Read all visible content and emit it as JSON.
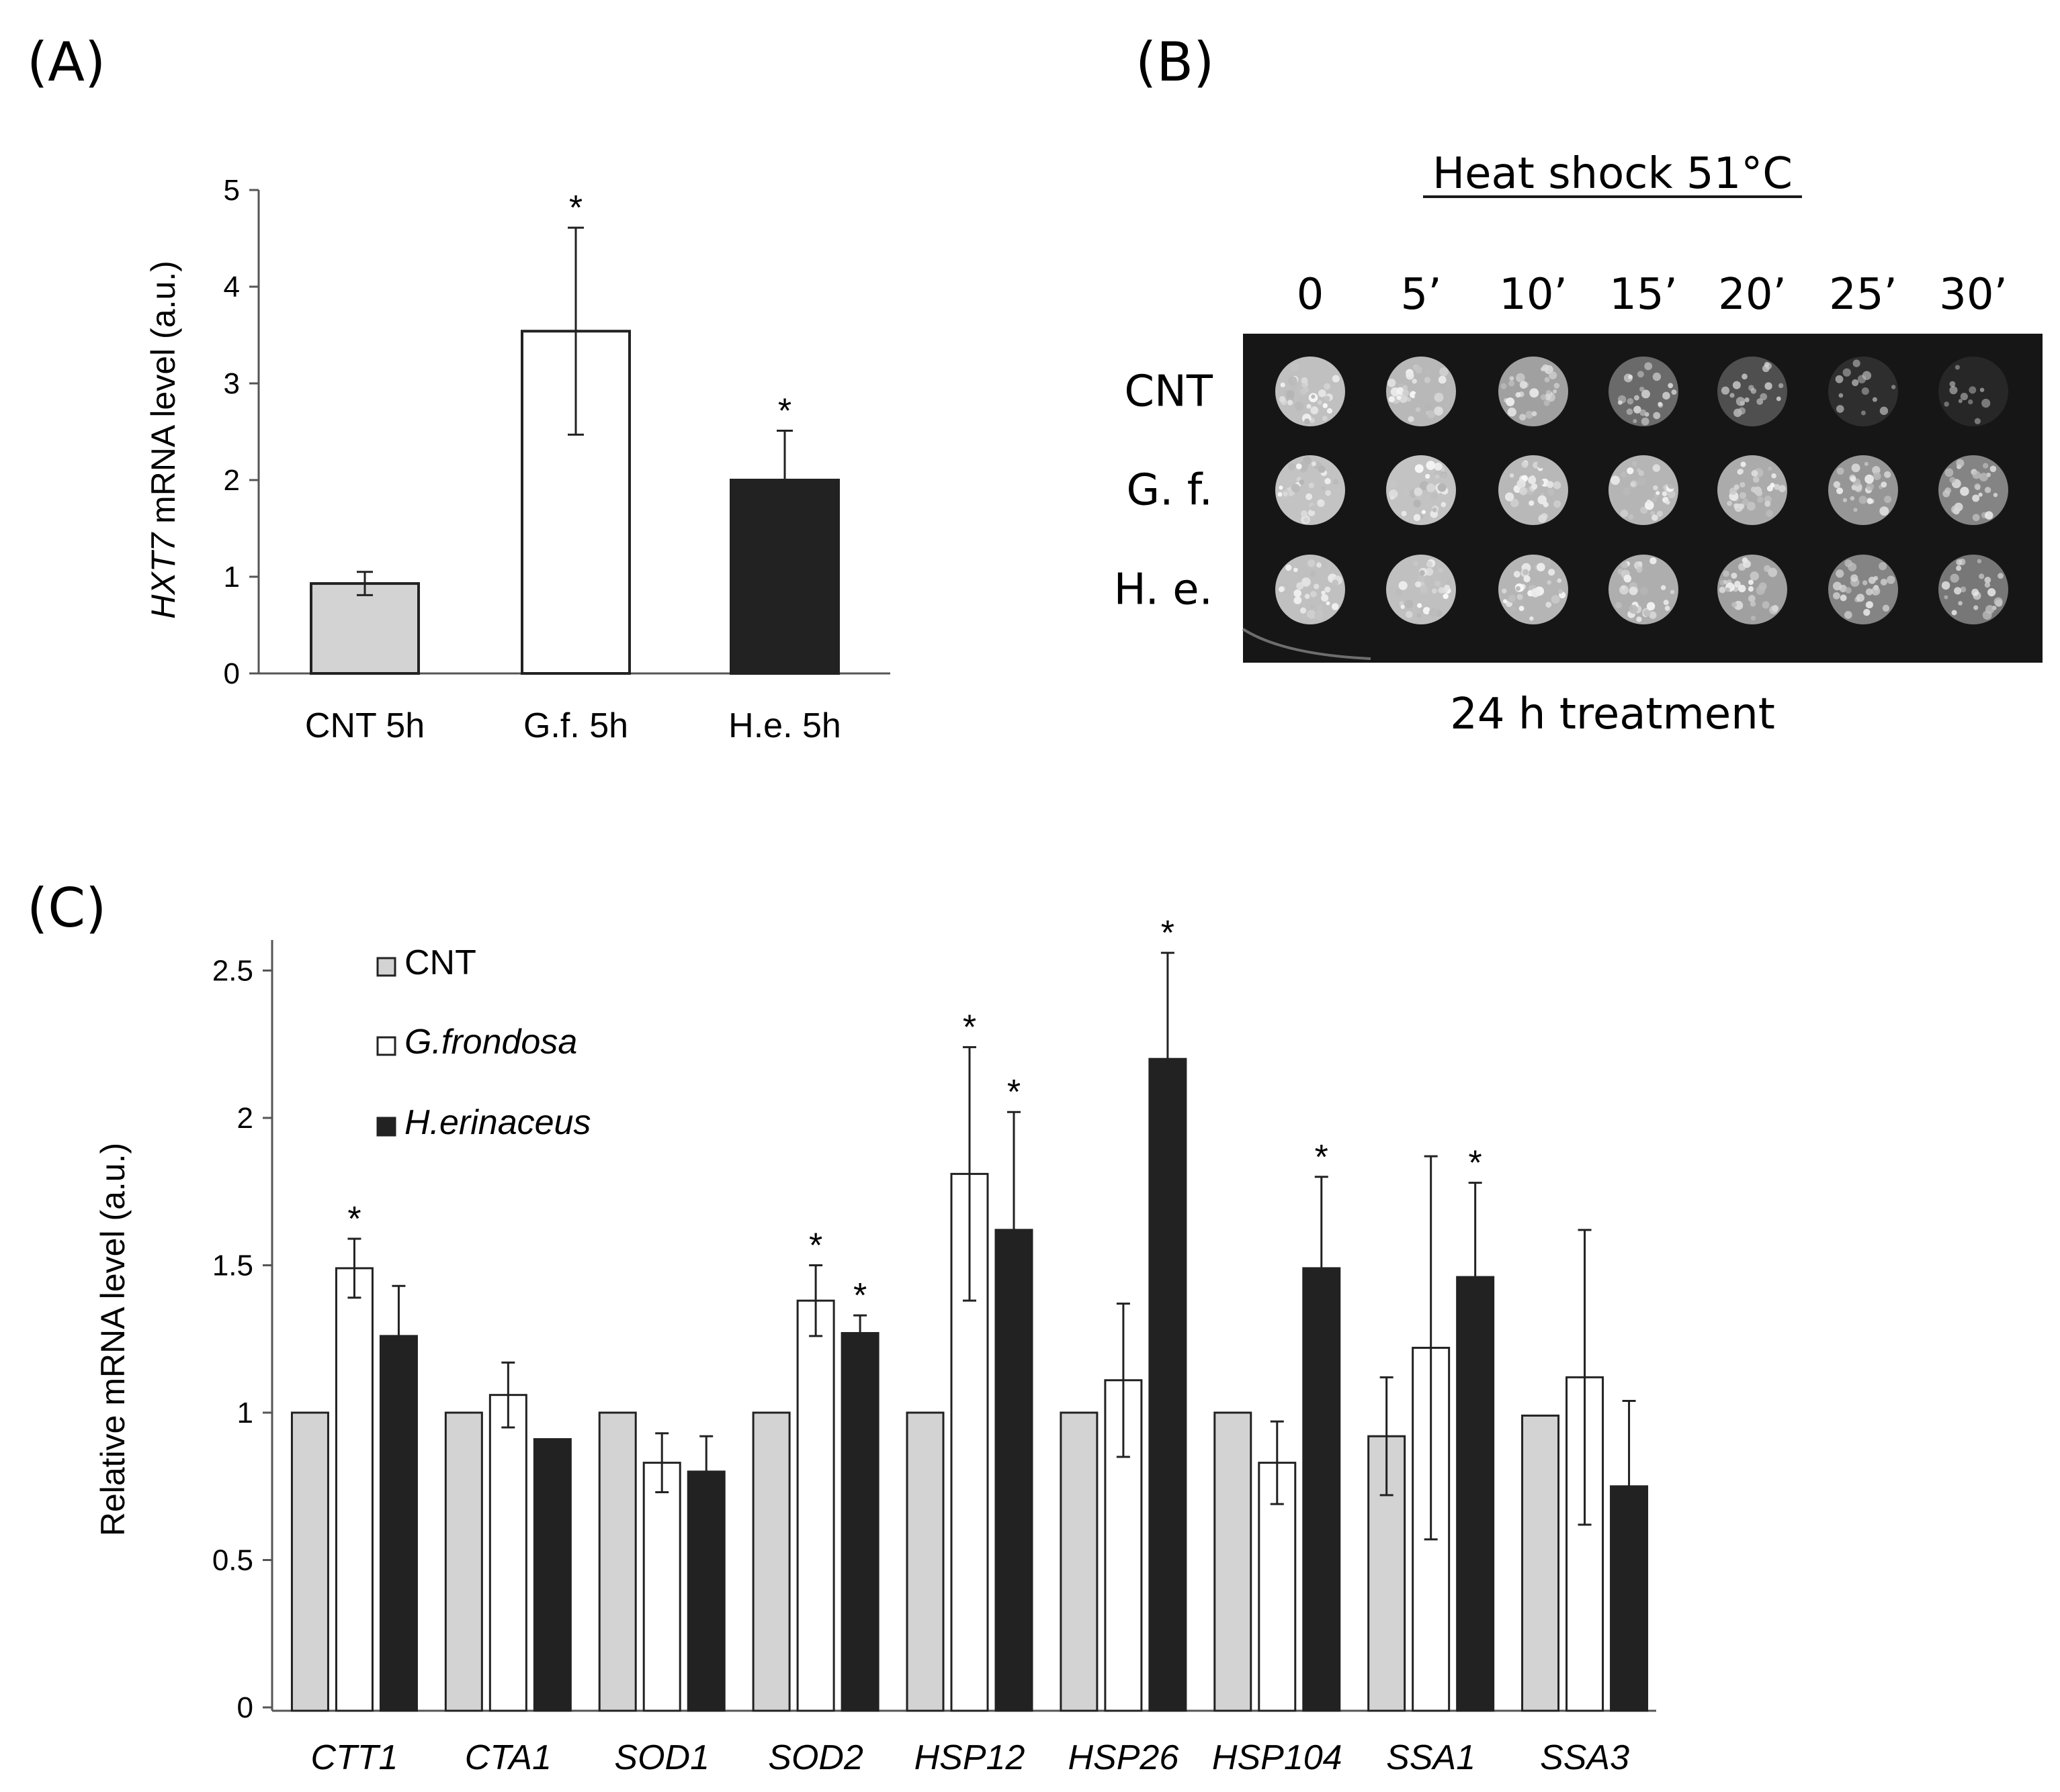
{
  "panels": {
    "a": "(A)",
    "b": "(B)",
    "c": "(C)"
  },
  "colors": {
    "cnt": "#d3d3d3",
    "gf": "#ffffff",
    "he": "#222222",
    "axis": "#555555",
    "plate": "#161616"
  },
  "chart_data": [
    {
      "panel": "A",
      "type": "bar",
      "categories": [
        "CNT 5h",
        "G.f. 5h",
        "H.e. 5h"
      ],
      "values": [
        0.93,
        3.54,
        2.0
      ],
      "errors": [
        0.12,
        1.07,
        0.51
      ],
      "significant": [
        false,
        true,
        true
      ],
      "bar_colors": [
        "#d3d3d3",
        "#ffffff",
        "#222222"
      ],
      "ylabel_italic": "HXT7",
      "ylabel_rest": " mRNA level (a.u.)",
      "ylim": [
        0,
        5
      ],
      "yticks": [
        "0",
        "1",
        "2",
        "3",
        "4",
        "5"
      ],
      "grid": false
    },
    {
      "panel": "C",
      "type": "bar",
      "categories": [
        "CTT1",
        "CTA1",
        "SOD1",
        "SOD2",
        "HSP12",
        "HSP26",
        "HSP104",
        "SSA1",
        "SSA3"
      ],
      "ylabel": "Relative mRNA level (a.u.)",
      "ylim": [
        0,
        2.6
      ],
      "yticks": [
        "0",
        "0.5",
        "1",
        "1.5",
        "2",
        "2.5"
      ],
      "grid": false,
      "legend_position": "top-left",
      "series": [
        {
          "name": "CNT",
          "italic": false,
          "color": "#d3d3d3",
          "values": [
            1.0,
            1.0,
            1.0,
            1.0,
            1.0,
            1.0,
            1.0,
            0.92,
            0.99
          ],
          "errors": [
            0,
            0,
            0,
            0,
            0,
            0,
            0,
            0.2,
            0
          ],
          "significant": [
            false,
            false,
            false,
            false,
            false,
            false,
            false,
            false,
            false
          ]
        },
        {
          "name": "G.frondosa",
          "italic": true,
          "color": "#ffffff",
          "values": [
            1.49,
            1.06,
            0.83,
            1.38,
            1.81,
            1.11,
            0.83,
            1.22,
            1.12
          ],
          "errors": [
            0.1,
            0.11,
            0.1,
            0.12,
            0.43,
            0.26,
            0.14,
            0.65,
            0.5
          ],
          "significant": [
            true,
            false,
            false,
            true,
            true,
            false,
            false,
            false,
            false
          ]
        },
        {
          "name": "H.erinaceus",
          "italic": true,
          "color": "#222222",
          "values": [
            1.26,
            0.91,
            0.8,
            1.27,
            1.62,
            2.2,
            1.49,
            1.46,
            0.75
          ],
          "errors": [
            0.17,
            0,
            0.12,
            0.06,
            0.4,
            0.36,
            0.31,
            0.32,
            0.29
          ],
          "significant": [
            false,
            false,
            false,
            true,
            true,
            true,
            true,
            true,
            false
          ]
        }
      ]
    }
  ],
  "plate": {
    "title": "Heat shock 51°C",
    "times": [
      "0",
      "5’",
      "10’",
      "15’",
      "20’",
      "25’",
      "30’"
    ],
    "rows": [
      "CNT",
      "G. f.",
      "H. e."
    ],
    "caption": "24 h treatment",
    "growth": [
      [
        0.95,
        0.9,
        0.75,
        0.55,
        0.42,
        0.22,
        0.15
      ],
      [
        0.97,
        0.97,
        0.9,
        0.88,
        0.82,
        0.72,
        0.65
      ],
      [
        0.95,
        0.95,
        0.88,
        0.84,
        0.75,
        0.65,
        0.6
      ]
    ]
  }
}
